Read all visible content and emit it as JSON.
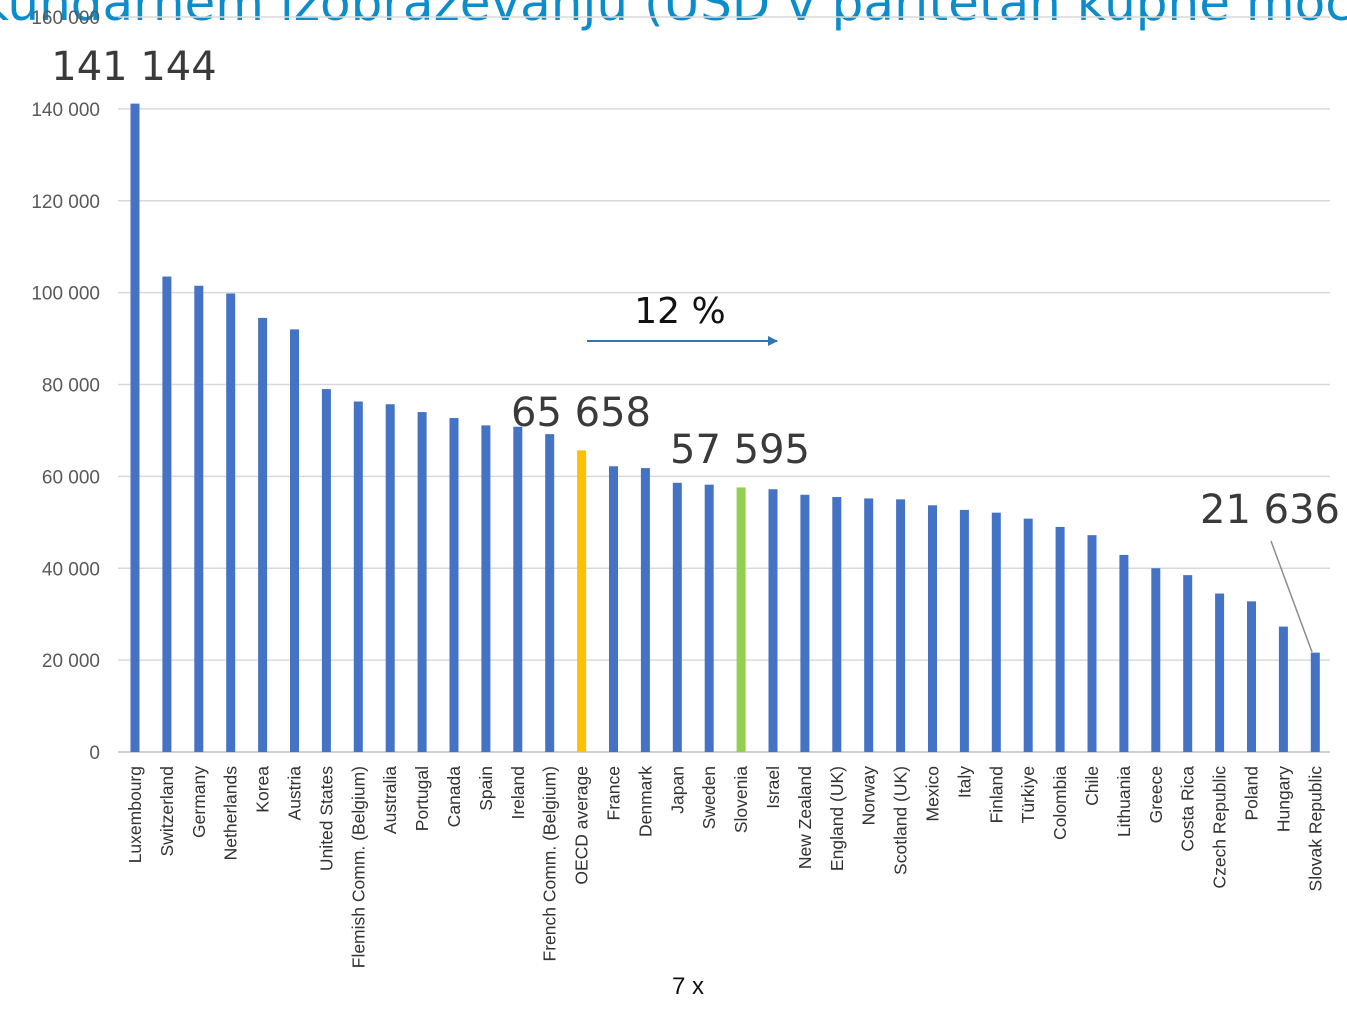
{
  "title": "kundarnem izobraževanju (USD v paritetah kupne moči",
  "chart_data": {
    "type": "bar",
    "categories": [
      "Luxembourg",
      "Switzerland",
      "Germany",
      "Netherlands",
      "Korea",
      "Austria",
      "United States",
      "Flemish Comm. (Belgium)",
      "Australia",
      "Portugal",
      "Canada",
      "Spain",
      "Ireland",
      "French Comm. (Belgium)",
      "OECD average",
      "France",
      "Denmark",
      "Japan",
      "Sweden",
      "Slovenia",
      "Israel",
      "New Zealand",
      "England (UK)",
      "Norway",
      "Scotland (UK)",
      "Mexico",
      "Italy",
      "Finland",
      "Türkiye",
      "Colombia",
      "Chile",
      "Lithuania",
      "Greece",
      "Costa Rica",
      "Czech Republic",
      "Poland",
      "Hungary",
      "Slovak Republic"
    ],
    "values": [
      141144,
      103500,
      101500,
      99800,
      94500,
      92000,
      79000,
      76300,
      75700,
      74000,
      72700,
      71100,
      70800,
      69200,
      65658,
      62200,
      61800,
      58600,
      58200,
      57595,
      57200,
      56000,
      55500,
      55200,
      55000,
      53700,
      52700,
      52100,
      50800,
      49000,
      47200,
      42900,
      40000,
      38500,
      34500,
      32800,
      27300,
      21636
    ],
    "colors": {
      "default": "#4472c4",
      "OECD average": "#ffc000",
      "Slovenia": "#92d050"
    },
    "ylim": [
      0,
      160000
    ],
    "yticks": [
      0,
      20000,
      40000,
      60000,
      80000,
      100000,
      120000,
      140000,
      160000
    ],
    "ytick_labels": [
      "0",
      "20 000",
      "40 000",
      "60 000",
      "80 000",
      "100 000",
      "120 000",
      "140 000",
      "160 000"
    ],
    "grid": true,
    "annotations": {
      "luxembourg_value": "141 144",
      "oecd_value": "65 658",
      "slovenia_value": "57 595",
      "slovak_value": "21 636",
      "gap_percent": "12 %",
      "ratio_label": "7 x"
    }
  }
}
